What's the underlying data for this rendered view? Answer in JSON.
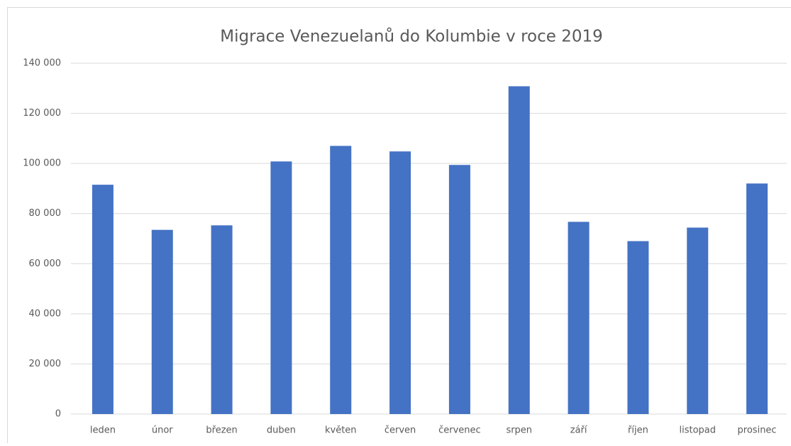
{
  "chart_data": {
    "type": "bar",
    "title": "Migrace Venezuelanů do Kolumbie v roce 2019",
    "categories": [
      "leden",
      "únor",
      "březen",
      "duben",
      "květen",
      "červen",
      "červenec",
      "srpen",
      "září",
      "říjen",
      "listopad",
      "prosinec"
    ],
    "values": [
      91500,
      73500,
      75300,
      100800,
      107000,
      104800,
      99400,
      130800,
      76700,
      69000,
      74400,
      92000
    ],
    "color": "#4472c4",
    "ylim": [
      0,
      140000
    ],
    "yticks": [
      0,
      {
        "value": 20000,
        "label": "20 000"
      },
      {
        "value": 40000,
        "label": "40 000"
      },
      {
        "value": 60000,
        "label": "60 000"
      },
      {
        "value": 80000,
        "label": "80 000"
      },
      {
        "value": 100000,
        "label": "100 000"
      },
      {
        "value": 120000,
        "label": "120 000"
      },
      {
        "value": 140000,
        "label": "140 000"
      }
    ],
    "grid": true
  }
}
